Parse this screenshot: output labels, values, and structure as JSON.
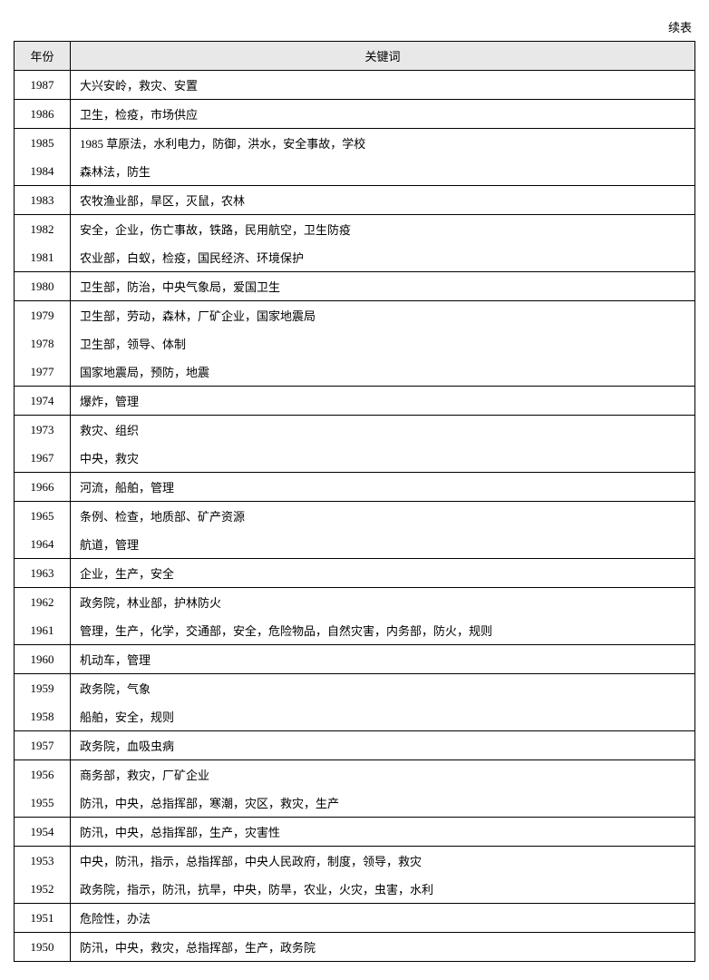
{
  "continued_label": "续表",
  "columns": {
    "year": "年份",
    "keywords": "关键词"
  },
  "groups": [
    {
      "rows": [
        {
          "year": "1987",
          "keywords": "大兴安岭，救灾、安置"
        }
      ]
    },
    {
      "rows": [
        {
          "year": "1986",
          "keywords": "卫生，检疫，市场供应"
        }
      ]
    },
    {
      "rows": [
        {
          "year": "1985",
          "keywords": "1985 草原法，水利电力，防御，洪水，安全事故，学校"
        },
        {
          "year": "1984",
          "keywords": "森林法，防生"
        }
      ]
    },
    {
      "rows": [
        {
          "year": "1983",
          "keywords": "农牧渔业部，旱区，灭鼠，农林"
        }
      ]
    },
    {
      "rows": [
        {
          "year": "1982",
          "keywords": "安全，企业，伤亡事故，铁路，民用航空，卫生防疫"
        },
        {
          "year": "1981",
          "keywords": "农业部，白蚁，检疫，国民经济、环境保护"
        }
      ]
    },
    {
      "rows": [
        {
          "year": "1980",
          "keywords": "卫生部，防治，中央气象局，爱国卫生"
        }
      ]
    },
    {
      "rows": [
        {
          "year": "1979",
          "keywords": "卫生部，劳动，森林，厂矿企业，国家地震局"
        },
        {
          "year": "1978",
          "keywords": "卫生部，领导、体制"
        },
        {
          "year": "1977",
          "keywords": "国家地震局，预防，地震"
        }
      ]
    },
    {
      "rows": [
        {
          "year": "1974",
          "keywords": "爆炸，管理"
        }
      ]
    },
    {
      "rows": [
        {
          "year": "1973",
          "keywords": "救灾、组织"
        },
        {
          "year": "1967",
          "keywords": "中央，救灾"
        }
      ]
    },
    {
      "rows": [
        {
          "year": "1966",
          "keywords": "河流，船舶，管理"
        }
      ]
    },
    {
      "rows": [
        {
          "year": "1965",
          "keywords": "条例、检查，地质部、矿产资源"
        },
        {
          "year": "1964",
          "keywords": "航道，管理"
        }
      ]
    },
    {
      "rows": [
        {
          "year": "1963",
          "keywords": "企业，生产，安全"
        }
      ]
    },
    {
      "rows": [
        {
          "year": "1962",
          "keywords": "政务院，林业部，护林防火"
        },
        {
          "year": "1961",
          "keywords": "管理，生产，化学，交通部，安全，危险物品，自然灾害，内务部，防火，规则"
        }
      ]
    },
    {
      "rows": [
        {
          "year": "1960",
          "keywords": "机动车，管理"
        }
      ]
    },
    {
      "rows": [
        {
          "year": "1959",
          "keywords": "政务院，气象"
        },
        {
          "year": "1958",
          "keywords": "船舶，安全，规则"
        }
      ]
    },
    {
      "rows": [
        {
          "year": "1957",
          "keywords": "政务院，血吸虫病"
        }
      ]
    },
    {
      "rows": [
        {
          "year": "1956",
          "keywords": "商务部，救灾，厂矿企业"
        },
        {
          "year": "1955",
          "keywords": "防汛，中央，总指挥部，寒潮，灾区，救灾，生产"
        }
      ]
    },
    {
      "rows": [
        {
          "year": "1954",
          "keywords": "防汛，中央，总指挥部，生产，灾害性"
        }
      ]
    },
    {
      "rows": [
        {
          "year": "1953",
          "keywords": "中央，防汛，指示，总指挥部，中央人民政府，制度，领导，救灾"
        },
        {
          "year": "1952",
          "keywords": "政务院，指示，防汛，抗旱，中央，防旱，农业，火灾，虫害，水利"
        }
      ]
    },
    {
      "rows": [
        {
          "year": "1951",
          "keywords": "危险性，办法"
        }
      ]
    },
    {
      "rows": [
        {
          "year": "1950",
          "keywords": "防汛，中央，救灾，总指挥部，生产，政务院"
        }
      ]
    }
  ]
}
